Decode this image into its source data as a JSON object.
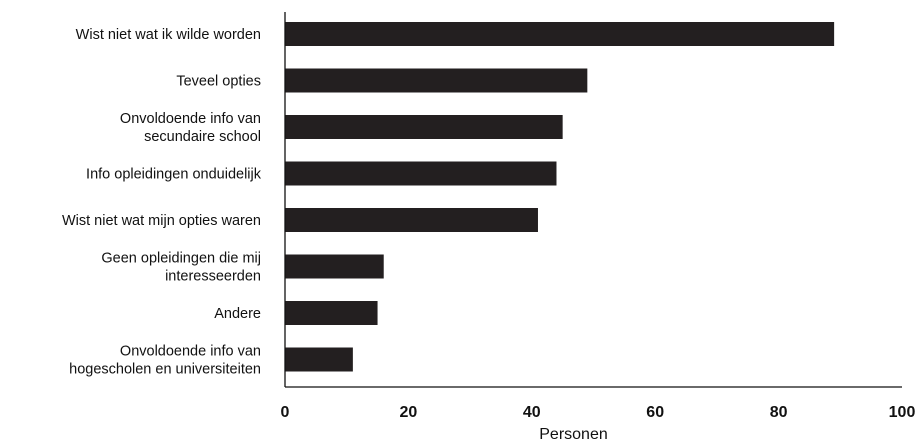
{
  "chart_data": {
    "type": "bar",
    "orientation": "horizontal",
    "categories": [
      [
        "Wist niet wat ik wilde worden"
      ],
      [
        "Teveel opties"
      ],
      [
        "Onvoldoende info van",
        "secundaire school"
      ],
      [
        "Info opleidingen onduidelijk"
      ],
      [
        "Wist niet wat mijn opties waren"
      ],
      [
        "Geen opleidingen die mij",
        "interesseerden"
      ],
      [
        "Andere"
      ],
      [
        "Onvoldoende info van",
        "hogescholen en universiteiten"
      ]
    ],
    "values": [
      89,
      49,
      45,
      44,
      41,
      16,
      15,
      11
    ],
    "xlabel": "Personen",
    "ylabel": "",
    "xlim": [
      0,
      100
    ],
    "xticks": [
      0,
      20,
      40,
      60,
      80,
      100
    ],
    "bar_color": "#231f20",
    "grid": false,
    "legend": "none"
  }
}
